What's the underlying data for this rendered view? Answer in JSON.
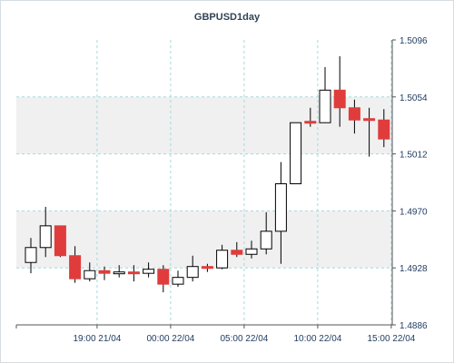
{
  "chart_data": {
    "type": "candlestick",
    "title": "GBPUSD1day",
    "ylim": [
      1.4886,
      1.5096
    ],
    "y_ticks": [
      "1.5096",
      "1.5054",
      "1.5012",
      "1.4970",
      "1.4928",
      "1.4886"
    ],
    "y_tick_values": [
      1.5096,
      1.5054,
      1.5012,
      1.497,
      1.4928,
      1.4886
    ],
    "x_ticks": [
      "19:00 21/04",
      "00:00 22/04",
      "05:00 22/04",
      "10:00 22/04",
      "15:00 22/04"
    ],
    "x_tick_index": [
      4.5,
      9.5,
      14.5,
      19.5,
      24.5
    ],
    "grid": true,
    "up_color": "#ffffff",
    "down_color": "#e03c3c",
    "band_color": "#f0f0f0",
    "grid_color": "#a8d8dc",
    "candles": [
      {
        "o": 1.4932,
        "h": 1.495,
        "l": 1.4924,
        "c": 1.4943
      },
      {
        "o": 1.4943,
        "h": 1.4973,
        "l": 1.4936,
        "c": 1.4959
      },
      {
        "o": 1.4959,
        "h": 1.4959,
        "l": 1.4936,
        "c": 1.4937
      },
      {
        "o": 1.4937,
        "h": 1.4944,
        "l": 1.4917,
        "c": 1.492
      },
      {
        "o": 1.492,
        "h": 1.4932,
        "l": 1.4918,
        "c": 1.4926
      },
      {
        "o": 1.4926,
        "h": 1.4929,
        "l": 1.4919,
        "c": 1.4924
      },
      {
        "o": 1.4924,
        "h": 1.493,
        "l": 1.4921,
        "c": 1.4925
      },
      {
        "o": 1.4925,
        "h": 1.493,
        "l": 1.4918,
        "c": 1.4924
      },
      {
        "o": 1.4924,
        "h": 1.4932,
        "l": 1.4921,
        "c": 1.4927
      },
      {
        "o": 1.4927,
        "h": 1.493,
        "l": 1.491,
        "c": 1.4916
      },
      {
        "o": 1.4916,
        "h": 1.4926,
        "l": 1.4914,
        "c": 1.4921
      },
      {
        "o": 1.4921,
        "h": 1.4937,
        "l": 1.4918,
        "c": 1.4929
      },
      {
        "o": 1.4929,
        "h": 1.4931,
        "l": 1.4925,
        "c": 1.4928
      },
      {
        "o": 1.4928,
        "h": 1.4945,
        "l": 1.4927,
        "c": 1.4941
      },
      {
        "o": 1.4941,
        "h": 1.4947,
        "l": 1.4936,
        "c": 1.4938
      },
      {
        "o": 1.4938,
        "h": 1.4948,
        "l": 1.4935,
        "c": 1.4942
      },
      {
        "o": 1.4942,
        "h": 1.4969,
        "l": 1.4938,
        "c": 1.4955
      },
      {
        "o": 1.4955,
        "h": 1.5006,
        "l": 1.4931,
        "c": 1.499
      },
      {
        "o": 1.499,
        "h": 1.5035,
        "l": 1.499,
        "c": 1.5035
      },
      {
        "o": 1.5036,
        "h": 1.5046,
        "l": 1.5032,
        "c": 1.5035
      },
      {
        "o": 1.5035,
        "h": 1.5076,
        "l": 1.5035,
        "c": 1.5059
      },
      {
        "o": 1.5059,
        "h": 1.5084,
        "l": 1.5032,
        "c": 1.5046
      },
      {
        "o": 1.5046,
        "h": 1.5052,
        "l": 1.5027,
        "c": 1.5037
      },
      {
        "o": 1.5038,
        "h": 1.5046,
        "l": 1.501,
        "c": 1.5037
      },
      {
        "o": 1.5037,
        "h": 1.5045,
        "l": 1.5017,
        "c": 1.5023
      }
    ]
  }
}
